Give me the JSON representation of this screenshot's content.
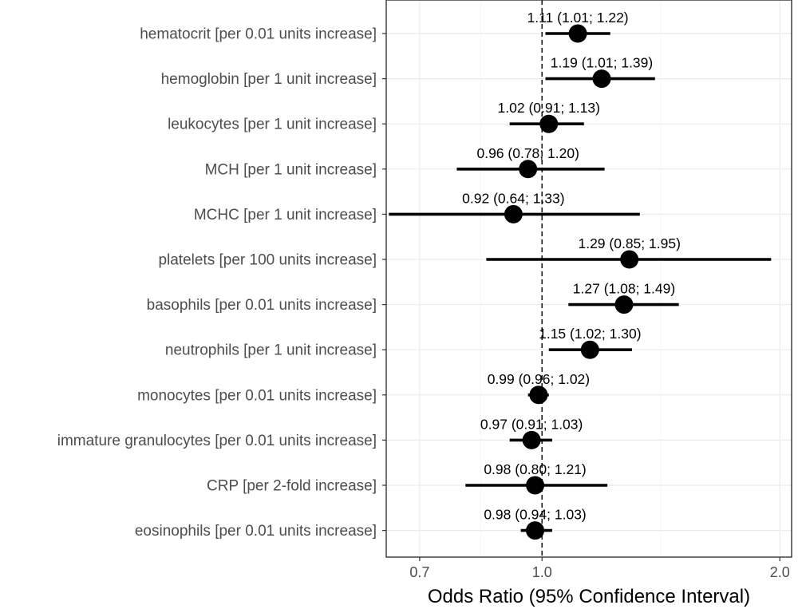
{
  "chart_data": {
    "type": "scatter",
    "subtype": "forest-plot",
    "xlabel": "Odds Ratio (95% Confidence Interval)",
    "x_scale": "log",
    "xlim": [
      0.635,
      2.07
    ],
    "x_ticks": [
      {
        "value": 0.7,
        "label": "0.7"
      },
      {
        "value": 1.0,
        "label": "1.0"
      },
      {
        "value": 2.0,
        "label": "2.0"
      }
    ],
    "reference_line": 1.0,
    "grid": true,
    "rows": [
      {
        "label": "hematocrit [per 0.01 units increase]",
        "or": 1.11,
        "lower": 1.01,
        "upper": 1.22,
        "text": "1.11 (1.01; 1.22)"
      },
      {
        "label": "hemoglobin [per 1 unit increase]",
        "or": 1.19,
        "lower": 1.01,
        "upper": 1.39,
        "text": "1.19 (1.01; 1.39)"
      },
      {
        "label": "leukocytes [per 1 unit increase]",
        "or": 1.02,
        "lower": 0.91,
        "upper": 1.13,
        "text": "1.02 (0.91; 1.13)"
      },
      {
        "label": "MCH [per 1 unit increase]",
        "or": 0.96,
        "lower": 0.78,
        "upper": 1.2,
        "text": "0.96 (0.78; 1.20)"
      },
      {
        "label": "MCHC [per 1 unit increase]",
        "or": 0.92,
        "lower": 0.64,
        "upper": 1.33,
        "text": "0.92 (0.64; 1.33)"
      },
      {
        "label": "platelets [per 100 units increase]",
        "or": 1.29,
        "lower": 0.85,
        "upper": 1.95,
        "text": "1.29 (0.85; 1.95)"
      },
      {
        "label": "basophils [per 0.01 units increase]",
        "or": 1.27,
        "lower": 1.08,
        "upper": 1.49,
        "text": "1.27 (1.08; 1.49)"
      },
      {
        "label": "neutrophils [per 1 unit increase]",
        "or": 1.15,
        "lower": 1.02,
        "upper": 1.3,
        "text": "1.15 (1.02; 1.30)"
      },
      {
        "label": "monocytes [per 0.01 units increase]",
        "or": 0.99,
        "lower": 0.96,
        "upper": 1.02,
        "text": "0.99 (0.96; 1.02)"
      },
      {
        "label": "immature granulocytes [per 0.01 units increase]",
        "or": 0.97,
        "lower": 0.91,
        "upper": 1.03,
        "text": "0.97 (0.91; 1.03)"
      },
      {
        "label": "CRP [per 2-fold increase]",
        "or": 0.98,
        "lower": 0.8,
        "upper": 1.21,
        "text": "0.98 (0.80; 1.21)"
      },
      {
        "label": "eosinophils [per 0.01 units increase]",
        "or": 0.98,
        "lower": 0.94,
        "upper": 1.03,
        "text": "0.98 (0.94; 1.03)"
      }
    ]
  }
}
